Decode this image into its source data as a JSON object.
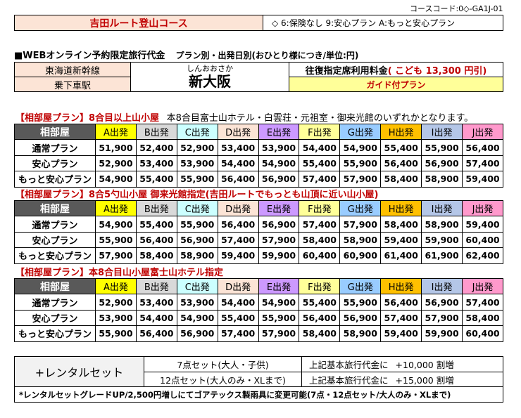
{
  "course_code": "コースコード:0◇-GA1J-01",
  "course_name": "吉田ルート登山コース",
  "insurance_note": "◇ 6:保険なし 9:安心プラン A:もっと安心プラン",
  "price_title": "■WEBオンライン予約限定旅行代金",
  "price_subtitle": "プラン別・出発日別(おひとり様につき/単位:円)",
  "route": {
    "line": "東海道新幹線",
    "station_label": "乗下車駅",
    "station_reading": "しんおおさか",
    "station_name": "新大阪",
    "fare_label": "往復指定席利用料金",
    "fare_child": "( こども 13,300 円引)",
    "guide_plan": "ガイド付プラン"
  },
  "colors": {
    "A": "#ffff00",
    "B": "#d9d9d9",
    "C": "#ccffff",
    "D": "#fce4d6",
    "E": "#cc99ff",
    "F": "#ffff99",
    "G": "#99ccff",
    "H": "#ffc000",
    "I": "#b4c6e7",
    "J": "#ff99cc"
  },
  "departures": [
    {
      "key": "A",
      "label": "A出発"
    },
    {
      "key": "B",
      "label": "B出発"
    },
    {
      "key": "C",
      "label": "C出発"
    },
    {
      "key": "D",
      "label": "D出発"
    },
    {
      "key": "E",
      "label": "E出発"
    },
    {
      "key": "F",
      "label": "F出発"
    },
    {
      "key": "G",
      "label": "G出発"
    },
    {
      "key": "H",
      "label": "H出発"
    },
    {
      "key": "I",
      "label": "I出発"
    },
    {
      "key": "J",
      "label": "J出発"
    }
  ],
  "sections": [
    {
      "title": "【相部屋プラン】8合目以上山小屋",
      "note": "本8合目富士山ホテル・白雲荘・元祖室・御来光館のいずれかとなります。",
      "header": "相部屋",
      "rows": [
        {
          "plan": "通常プラン",
          "prices": [
            "51,900",
            "52,400",
            "52,900",
            "53,400",
            "53,900",
            "54,400",
            "54,900",
            "55,400",
            "55,900",
            "56,400"
          ]
        },
        {
          "plan": "安心プラン",
          "prices": [
            "52,900",
            "53,400",
            "53,900",
            "54,400",
            "54,900",
            "55,400",
            "55,900",
            "56,400",
            "56,900",
            "57,400"
          ]
        },
        {
          "plan": "もっと安心プラン",
          "prices": [
            "54,900",
            "55,400",
            "55,900",
            "56,400",
            "56,900",
            "57,400",
            "57,900",
            "58,400",
            "58,900",
            "59,400"
          ]
        }
      ]
    },
    {
      "title": "【相部屋プラン】8合5勺山小屋 御来光館指定(吉田ルートでもっとも山頂に近い山小屋)",
      "note": "",
      "header": "相部屋",
      "rows": [
        {
          "plan": "通常プラン",
          "prices": [
            "54,900",
            "55,400",
            "55,900",
            "56,400",
            "56,900",
            "57,400",
            "57,900",
            "58,400",
            "58,900",
            "59,400"
          ]
        },
        {
          "plan": "安心プラン",
          "prices": [
            "55,900",
            "56,400",
            "56,900",
            "57,400",
            "57,900",
            "58,400",
            "58,900",
            "59,400",
            "59,900",
            "60,400"
          ]
        },
        {
          "plan": "もっと安心プラン",
          "prices": [
            "57,900",
            "58,400",
            "58,900",
            "59,400",
            "59,900",
            "60,400",
            "60,900",
            "61,400",
            "61,900",
            "62,400"
          ]
        }
      ]
    },
    {
      "title": "【相部屋プラン】本8合目山小屋富士山ホテル指定",
      "note": "",
      "header": "相部屋",
      "rows": [
        {
          "plan": "通常プラン",
          "prices": [
            "52,900",
            "53,400",
            "53,900",
            "54,400",
            "54,900",
            "55,400",
            "55,900",
            "56,400",
            "56,900",
            "57,400"
          ]
        },
        {
          "plan": "安心プラン",
          "prices": [
            "53,900",
            "54,400",
            "54,900",
            "55,400",
            "55,900",
            "56,400",
            "56,900",
            "57,400",
            "57,900",
            "58,400"
          ]
        },
        {
          "plan": "もっと安心プラン",
          "prices": [
            "55,900",
            "56,400",
            "56,900",
            "57,400",
            "57,900",
            "58,400",
            "58,900",
            "59,400",
            "59,900",
            "60,400"
          ]
        }
      ]
    }
  ],
  "rental": {
    "title": "+レンタルセット",
    "set7": "7点セット(大人・子供)",
    "set12": "12点セット(大人のみ・XLまで)",
    "surcharge_label": "上記基本旅行代金に",
    "surcharge7": "+10,000 割増",
    "surcharge12": "+15,000 割増",
    "footnote": "*レンタルセットグレードUP/2,500円増しにてゴアテックス製雨具に変更可能(7点・12点セット/大人のみ・XLまで)"
  }
}
